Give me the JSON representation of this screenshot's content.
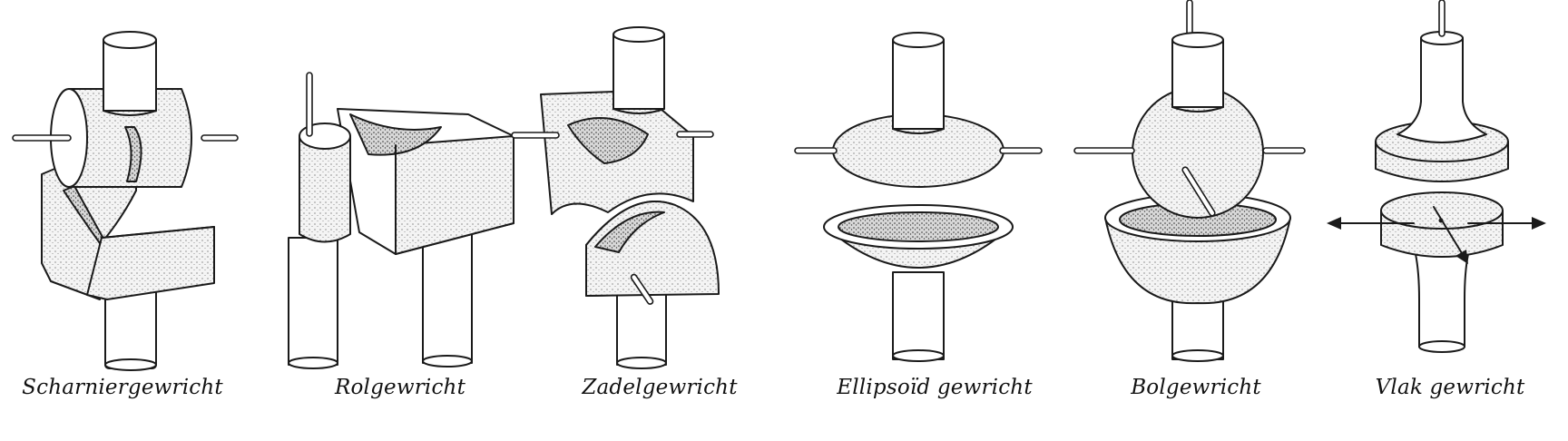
{
  "figure": {
    "joints": [
      {
        "caption": "Scharniergewricht"
      },
      {
        "caption": "Rolgewricht"
      },
      {
        "caption": "Zadelgewricht"
      },
      {
        "caption": "Ellipsoïd gewricht"
      },
      {
        "caption": "Bolgewricht"
      },
      {
        "caption": "Vlak gewricht"
      }
    ]
  }
}
